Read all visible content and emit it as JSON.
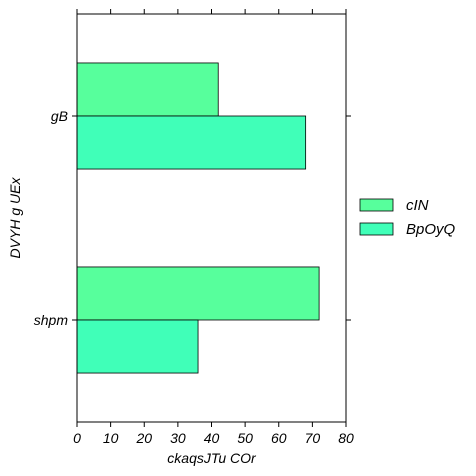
{
  "chart_data": {
    "type": "bar",
    "orientation": "horizontal",
    "categories": [
      "gB",
      "shpm"
    ],
    "series": [
      {
        "name": "cIN",
        "values": [
          42,
          72
        ],
        "color": "#57ff9c"
      },
      {
        "name": "BpOyQ",
        "values": [
          68,
          36
        ],
        "color": "#40ffb8"
      }
    ],
    "xlabel": "ckaqsJTu COr",
    "ylabel": "DVYH g  UEx",
    "xlim": [
      0,
      80
    ],
    "xticks": [
      "0",
      "10",
      "20",
      "30",
      "40",
      "50",
      "60",
      "70",
      "80"
    ],
    "grid": false,
    "legend": "right"
  }
}
